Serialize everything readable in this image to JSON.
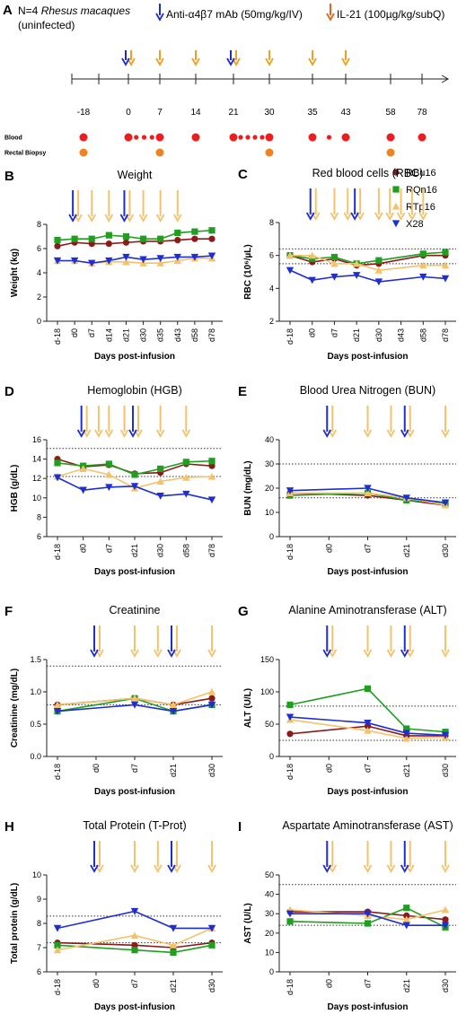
{
  "panel_a": {
    "label": "A",
    "cohort": {
      "prefix": "N=4 ",
      "species": "Rhesus macaques",
      "note": "(uninfected)"
    },
    "legend": [
      {
        "name": "Anti-α4β7 mAb (50mg/kg/IV)",
        "color": "#1f2ec9"
      },
      {
        "name": "IL-21 (100µg/kg/subQ)",
        "color": "#e0641c"
      }
    ],
    "timeline_ticks": [
      "-18",
      "0",
      "7",
      "14",
      "21",
      "30",
      "35",
      "43",
      "58",
      "78"
    ],
    "timeline_mab_days": [
      "0",
      "21"
    ],
    "timeline_il21_days": [
      "0",
      "7",
      "14",
      "21",
      "30",
      "35",
      "43"
    ],
    "rows": [
      {
        "label": "Blood",
        "color": "#ee1c1c",
        "days": [
          "-18",
          "0",
          "7",
          "14",
          "21",
          "30",
          "35",
          "43",
          "58",
          "78"
        ],
        "extra_groups": [
          {
            "between": [
              "0",
              "7"
            ],
            "count": 3
          },
          {
            "between": [
              "21",
              "30"
            ],
            "count": 4
          },
          {
            "between": [
              "35",
              "43"
            ],
            "count": 1
          }
        ]
      },
      {
        "label": "Rectal Biopsy",
        "color": "#f08220",
        "days": [
          "-18",
          "7",
          "30",
          "58"
        ]
      }
    ]
  },
  "series_meta": [
    {
      "name": "RBu16",
      "color": "#8b1a1a",
      "marker": "circle"
    },
    {
      "name": "RQn16",
      "color": "#1f9e1f",
      "marker": "square"
    },
    {
      "name": "RTp16",
      "color": "#f5c26b",
      "marker": "triangle"
    },
    {
      "name": "X28",
      "color": "#1f2ed1",
      "marker": "triangle-down"
    }
  ],
  "arrow_colors": {
    "mab": "#1f2ed1",
    "il21": "#f5c26b"
  },
  "chart_data": [
    {
      "label": "B",
      "type": "line",
      "title": "Weight",
      "ylabel": "Weight (kg)",
      "xlabel": "Days post-infusion",
      "categories": [
        "d-18",
        "d0",
        "d7",
        "d14",
        "d21",
        "d30",
        "d35",
        "d43",
        "d58",
        "d78"
      ],
      "ylim": [
        0,
        8
      ],
      "yticks": [
        0,
        2,
        4,
        6,
        8
      ],
      "ref_lines": [],
      "mab_arrows": [
        "d0",
        "d21"
      ],
      "il21_arrows": [
        "d0",
        "d7",
        "d14",
        "d21",
        "d30",
        "d35",
        "d43"
      ],
      "series": [
        {
          "name": "RBu16",
          "values": [
            6.2,
            6.5,
            6.4,
            6.4,
            6.5,
            6.6,
            6.6,
            6.7,
            6.8,
            6.8
          ]
        },
        {
          "name": "RQn16",
          "values": [
            6.7,
            6.8,
            6.8,
            7.1,
            7.0,
            6.8,
            6.8,
            7.3,
            7.4,
            7.5
          ]
        },
        {
          "name": "RTp16",
          "values": [
            5.0,
            5.0,
            4.8,
            4.9,
            4.9,
            4.8,
            4.8,
            5.0,
            5.2,
            5.2
          ]
        },
        {
          "name": "X28",
          "values": [
            5.0,
            5.0,
            4.8,
            5.0,
            5.3,
            5.1,
            5.2,
            5.3,
            5.3,
            5.4
          ]
        }
      ]
    },
    {
      "label": "C",
      "type": "line",
      "title": "Red blood cells (RBC)",
      "ylabel": "RBC (10⁶/µL)",
      "xlabel": "Days post-infusion",
      "categories": [
        "d-18",
        "d0",
        "d7",
        "d21",
        "d30",
        "d43",
        "d58",
        "d78"
      ],
      "ylim": [
        2,
        8
      ],
      "yticks": [
        2,
        4,
        6,
        8
      ],
      "ref_lines": [
        5.5,
        6.4
      ],
      "mab_arrows": [
        "d0",
        "d21"
      ],
      "il21_arrows": [
        "d0",
        "d7",
        "d21",
        "d30",
        "d43",
        "d58"
      ],
      "extra_il21_positions": [
        2.6,
        4.5,
        5.5
      ],
      "series": [
        {
          "name": "RBu16",
          "values": [
            6.0,
            5.6,
            5.8,
            5.4,
            5.5,
            null,
            6.0,
            6.0
          ]
        },
        {
          "name": "RQn16",
          "values": [
            6.0,
            5.8,
            5.9,
            5.5,
            5.7,
            null,
            6.1,
            6.2
          ]
        },
        {
          "name": "RTp16",
          "values": [
            6.0,
            6.0,
            5.5,
            5.5,
            5.1,
            null,
            5.4,
            5.4
          ]
        },
        {
          "name": "X28",
          "values": [
            5.1,
            4.5,
            4.7,
            4.8,
            4.4,
            null,
            4.7,
            4.6
          ]
        }
      ]
    },
    {
      "label": "D",
      "type": "line",
      "title": "Hemoglobin (HGB)",
      "ylabel": "HGB (g/dL)",
      "xlabel": "Days post-infusion",
      "categories": [
        "d-18",
        "d0",
        "d7",
        "d21",
        "d30",
        "d58",
        "d78"
      ],
      "ylim": [
        6,
        16
      ],
      "yticks": [
        6,
        8,
        10,
        12,
        14,
        16
      ],
      "ref_lines": [
        12.2,
        15.1
      ],
      "mab_arrows": [
        "d0",
        "d21"
      ],
      "il21_arrows": [
        "d0",
        "d7",
        "d21",
        "d30",
        "d58"
      ],
      "extra_il21_positions": [
        1.6,
        2.6
      ],
      "series": [
        {
          "name": "RBu16",
          "values": [
            14.0,
            13.2,
            13.4,
            12.5,
            12.6,
            13.5,
            13.3
          ]
        },
        {
          "name": "RQn16",
          "values": [
            13.6,
            13.3,
            13.5,
            12.4,
            13.0,
            13.7,
            13.8
          ]
        },
        {
          "name": "RTp16",
          "values": [
            12.2,
            13.0,
            12.4,
            11.0,
            11.7,
            12.1,
            12.2
          ]
        },
        {
          "name": "X28",
          "values": [
            12.1,
            10.8,
            11.1,
            11.2,
            10.2,
            10.4,
            9.8
          ]
        }
      ]
    },
    {
      "label": "E",
      "type": "line",
      "title": "Blood Urea Nitrogen (BUN)",
      "ylabel": "BUN (mg/dL)",
      "xlabel": "Days post-infusion",
      "categories": [
        "d-18",
        "d0",
        "d7",
        "d21",
        "d30"
      ],
      "ylim": [
        0,
        40
      ],
      "yticks": [
        0,
        10,
        20,
        30,
        40
      ],
      "ref_lines": [
        16,
        30
      ],
      "mab_arrows": [
        "d0",
        "d21"
      ],
      "il21_arrows": [
        "d0",
        "d7",
        "d21",
        "d30"
      ],
      "extra_il21_positions": [
        2.6
      ],
      "series": [
        {
          "name": "RBu16",
          "values": [
            18,
            null,
            17,
            15,
            13
          ]
        },
        {
          "name": "RQn16",
          "values": [
            17,
            null,
            18,
            15,
            14
          ]
        },
        {
          "name": "RTp16",
          "values": [
            18,
            null,
            18,
            16,
            13
          ]
        },
        {
          "name": "X28",
          "values": [
            19,
            null,
            20,
            16,
            14
          ]
        }
      ]
    },
    {
      "label": "F",
      "type": "line",
      "title": "Creatinine",
      "ylabel": "Creatinine (mg/dL)",
      "xlabel": "Days post-infusion",
      "categories": [
        "d-18",
        "d0",
        "d7",
        "d21",
        "d30"
      ],
      "ylim": [
        0,
        1.5
      ],
      "yticks": [
        0.0,
        0.5,
        1.0,
        1.5
      ],
      "ref_lines": [
        0.8,
        1.4
      ],
      "mab_arrows": [
        "d0",
        "d21"
      ],
      "il21_arrows": [
        "d0",
        "d7",
        "d21",
        "d30"
      ],
      "extra_il21_positions": [
        2.6
      ],
      "series": [
        {
          "name": "RBu16",
          "values": [
            0.8,
            null,
            0.9,
            0.8,
            0.9
          ]
        },
        {
          "name": "RQn16",
          "values": [
            0.7,
            null,
            0.9,
            0.7,
            0.8
          ]
        },
        {
          "name": "RTp16",
          "values": [
            0.8,
            null,
            0.9,
            0.8,
            1.0
          ]
        },
        {
          "name": "X28",
          "values": [
            0.7,
            null,
            0.8,
            0.7,
            0.8
          ]
        }
      ]
    },
    {
      "label": "G",
      "type": "line",
      "title": "Alanine Aminotransferase (ALT)",
      "ylabel": "ALT (U/L)",
      "xlabel": "Days post-infusion",
      "categories": [
        "d-18",
        "d0",
        "d7",
        "d21",
        "d30"
      ],
      "ylim": [
        0,
        150
      ],
      "yticks": [
        0,
        50,
        100,
        150
      ],
      "ref_lines": [
        25,
        78
      ],
      "mab_arrows": [
        "d0",
        "d21"
      ],
      "il21_arrows": [
        "d0",
        "d7",
        "d21",
        "d30"
      ],
      "extra_il21_positions": [
        2.6
      ],
      "series": [
        {
          "name": "RBu16",
          "values": [
            35,
            null,
            47,
            32,
            32
          ]
        },
        {
          "name": "RQn16",
          "values": [
            80,
            null,
            105,
            43,
            38
          ]
        },
        {
          "name": "RTp16",
          "values": [
            57,
            null,
            40,
            28,
            30
          ]
        },
        {
          "name": "X28",
          "values": [
            61,
            null,
            52,
            36,
            33
          ]
        }
      ]
    },
    {
      "label": "H",
      "type": "line",
      "title": "Total Protein (T-Prot)",
      "ylabel": "Total protein (g/dL)",
      "xlabel": "Days post-infusion",
      "categories": [
        "d-18",
        "d0",
        "d7",
        "d21",
        "d30"
      ],
      "ylim": [
        6,
        10
      ],
      "yticks": [
        6,
        7,
        8,
        9,
        10
      ],
      "ref_lines": [
        7.2,
        8.3
      ],
      "mab_arrows": [
        "d0",
        "d21"
      ],
      "il21_arrows": [
        "d0",
        "d7",
        "d21",
        "d30"
      ],
      "extra_il21_positions": [
        2.6
      ],
      "series": [
        {
          "name": "RBu16",
          "values": [
            7.2,
            null,
            7.1,
            7.0,
            7.2
          ]
        },
        {
          "name": "RQn16",
          "values": [
            7.1,
            null,
            6.9,
            6.8,
            7.1
          ]
        },
        {
          "name": "RTp16",
          "values": [
            6.9,
            null,
            7.5,
            7.1,
            7.8
          ]
        },
        {
          "name": "X28",
          "values": [
            7.8,
            null,
            8.5,
            7.8,
            7.8
          ]
        }
      ]
    },
    {
      "label": "I",
      "type": "line",
      "title": "Aspartate Aminotransferase (AST)",
      "ylabel": "AST (U/L)",
      "xlabel": "Days post-infusion",
      "categories": [
        "d-18",
        "d0",
        "d7",
        "d21",
        "d30"
      ],
      "ylim": [
        0,
        50
      ],
      "yticks": [
        0,
        10,
        20,
        30,
        40,
        50
      ],
      "ref_lines": [
        24,
        45
      ],
      "mab_arrows": [
        "d0",
        "d21"
      ],
      "il21_arrows": [
        "d0",
        "d7",
        "d21",
        "d30"
      ],
      "extra_il21_positions": [
        2.6
      ],
      "series": [
        {
          "name": "RBu16",
          "values": [
            31,
            null,
            31,
            29,
            27
          ]
        },
        {
          "name": "RQn16",
          "values": [
            26,
            null,
            25,
            33,
            23
          ]
        },
        {
          "name": "RTp16",
          "values": [
            32,
            null,
            29,
            27,
            32
          ]
        },
        {
          "name": "X28",
          "values": [
            30,
            null,
            30,
            24,
            24
          ]
        }
      ]
    }
  ]
}
